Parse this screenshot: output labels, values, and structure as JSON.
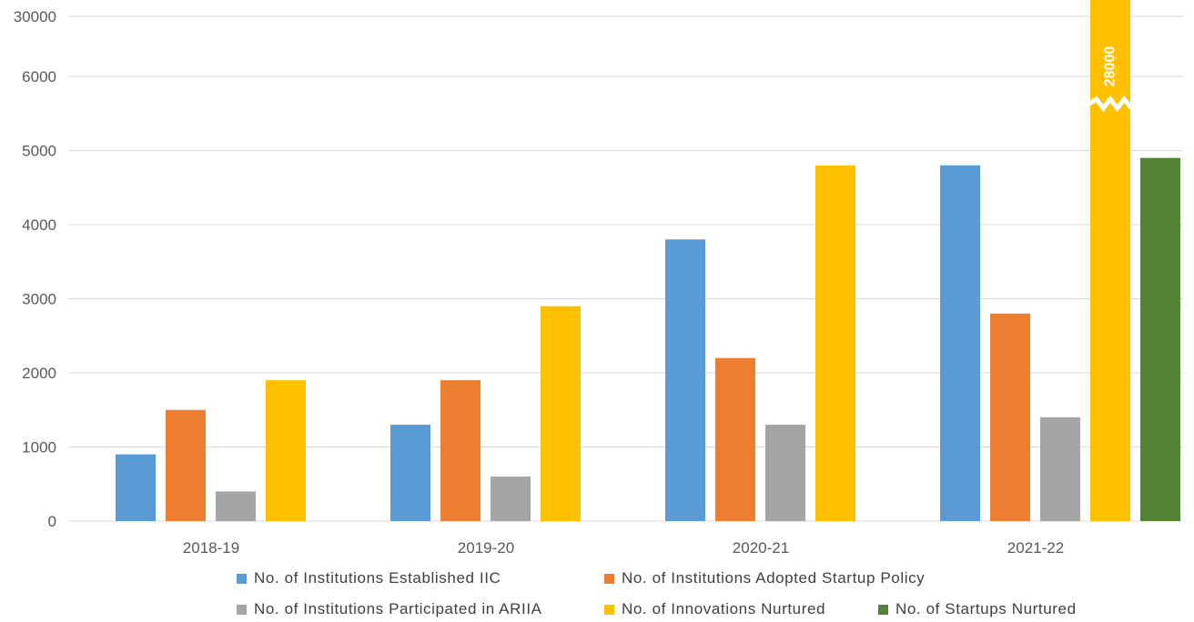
{
  "chart_data": {
    "type": "bar",
    "categories": [
      "2018-19",
      "2019-20",
      "2020-21",
      "2021-22"
    ],
    "series": [
      {
        "name": "No. of Institutions Established IIC",
        "color": "#5B9BD5",
        "values": [
          900,
          1300,
          3800,
          4800
        ]
      },
      {
        "name": "No. of Institutions Adopted Startup Policy",
        "color": "#ED7D31",
        "values": [
          1500,
          1900,
          2200,
          2800
        ]
      },
      {
        "name": "No. of Institutions Participated in ARIIA",
        "color": "#A5A5A5",
        "values": [
          400,
          600,
          1300,
          1400
        ]
      },
      {
        "name": "No. of Innovations Nurtured",
        "color": "#FFC000",
        "values": [
          1900,
          2900,
          4800,
          28000
        ]
      },
      {
        "name": "No. of Startups Nurtured",
        "color": "#548235",
        "values": [
          null,
          null,
          null,
          4900
        ]
      }
    ],
    "yticks": [
      {
        "value": 0,
        "label": "0"
      },
      {
        "value": 1000,
        "label": "1000"
      },
      {
        "value": 2000,
        "label": "2000"
      },
      {
        "value": 3000,
        "label": "3000"
      },
      {
        "value": 4000,
        "label": "4000"
      },
      {
        "value": 5000,
        "label": "5000"
      },
      {
        "value": 6000,
        "label": "6000"
      },
      {
        "value": 30000,
        "label": "30000"
      }
    ],
    "axis_break": {
      "from": 6000,
      "to": 30000
    },
    "annotations": [
      {
        "series": 3,
        "category": 3,
        "text": "28000"
      }
    ],
    "ylim": [
      0,
      30000
    ],
    "grid": true,
    "legend_position": "bottom"
  }
}
